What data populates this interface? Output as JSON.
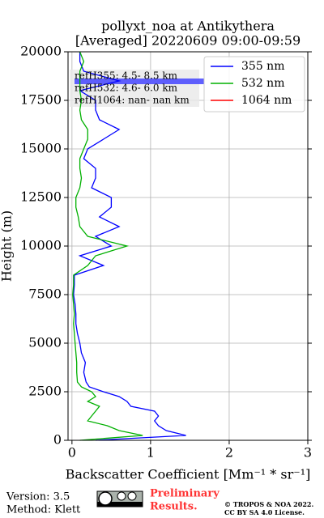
{
  "chart_data": {
    "type": "line",
    "title": "pollyxt_noa at Antikythera",
    "subtitle": "[Averaged] 20220609 09:00-09:59",
    "x_label": "Backscatter Coefficient [Mm⁻¹ * sr⁻¹]",
    "y_label": "Height (m)",
    "annotations": [
      "refH355:  4.5- 8.5 km",
      "refH532:  4.6- 6.0 km",
      "refH1064:  nan- nan km"
    ],
    "x": [
      0,
      250,
      500,
      750,
      1000,
      1250,
      1500,
      1750,
      2000,
      2250,
      2500,
      2750,
      3000,
      3500,
      4000,
      4500,
      5000,
      5500,
      6000,
      6500,
      7000,
      7500,
      8000,
      8500,
      9000,
      9500,
      10000,
      10500,
      11000,
      11500,
      12000,
      12500,
      13000,
      13500,
      14000,
      14500,
      15000,
      15500,
      16000,
      16500,
      17000,
      17500,
      18000,
      18500,
      19000,
      19500,
      20000
    ],
    "series": [
      {
        "name": "355 nm",
        "color": "#0000ff",
        "values": [
          0.3,
          1.45,
          1.2,
          1.1,
          1.05,
          1.1,
          1.05,
          0.75,
          0.7,
          0.6,
          0.4,
          0.22,
          0.18,
          0.15,
          0.17,
          0.12,
          0.1,
          0.07,
          0.05,
          0.05,
          0.04,
          0.02,
          0.03,
          0.03,
          0.4,
          0.1,
          0.5,
          0.3,
          0.6,
          0.35,
          0.5,
          0.5,
          0.25,
          0.3,
          0.3,
          0.15,
          0.2,
          0.4,
          0.6,
          0.35,
          0.3,
          0.3,
          0.1,
          0.6,
          0.15,
          0.1,
          0.1
        ]
      },
      {
        "name": "532 nm",
        "color": "#00b000",
        "values": [
          0.1,
          0.9,
          0.6,
          0.45,
          0.2,
          0.25,
          0.3,
          0.35,
          0.2,
          0.3,
          0.25,
          0.12,
          0.07,
          0.06,
          0.06,
          0.05,
          0.04,
          0.03,
          0.02,
          0.03,
          0.02,
          0.01,
          0.02,
          0.02,
          0.2,
          0.3,
          0.7,
          0.2,
          0.1,
          0.08,
          0.05,
          0.05,
          0.1,
          0.12,
          0.1,
          0.1,
          0.15,
          0.2,
          0.2,
          0.12,
          0.1,
          0.12,
          0.1,
          0.1,
          0.1,
          0.15,
          0.1
        ]
      },
      {
        "name": "1064 nm",
        "color": "#ff0000",
        "values": [
          null,
          null,
          null,
          null,
          null,
          null,
          null,
          null,
          null,
          null,
          null,
          null,
          null,
          null,
          null,
          null,
          null,
          null,
          null,
          null,
          null,
          null,
          null,
          null,
          null,
          null,
          null,
          null,
          null,
          null,
          null,
          null,
          null,
          null,
          null,
          null,
          null,
          null,
          null,
          null,
          null,
          null,
          null,
          null,
          null,
          null,
          null
        ]
      }
    ],
    "xlim": [
      -0.05,
      3
    ],
    "xticks": [
      0,
      1,
      2,
      3
    ],
    "ylim": [
      0,
      20000
    ],
    "yticks": [
      0,
      2500,
      5000,
      7500,
      10000,
      12500,
      15000,
      17500,
      20000
    ],
    "grid": true,
    "legend": "upper right"
  },
  "footer": {
    "version": "Version: 3.5",
    "method": "Method: Klett",
    "preliminary": [
      "Preliminary",
      "Results."
    ],
    "copyright": "© TROPOS & NOA 2022.",
    "license": "CC BY SA 4.0 License."
  }
}
